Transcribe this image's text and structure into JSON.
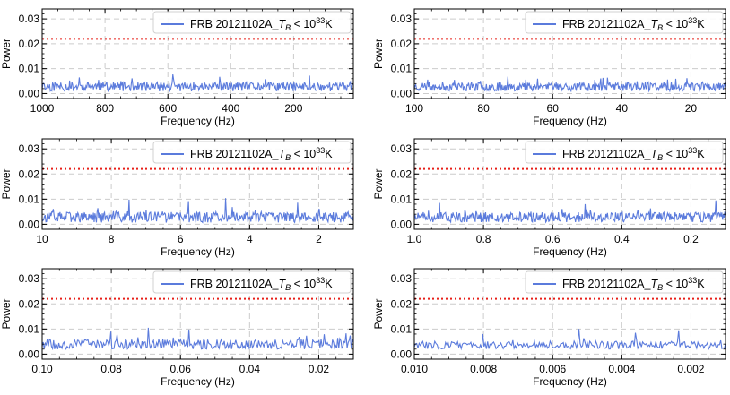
{
  "figure": {
    "layout": "3x2 grid of power spectra"
  },
  "chart_data": [
    {
      "type": "line",
      "title": "",
      "xlabel": "Frequency (Hz)",
      "ylabel": "Power",
      "xlim": [
        1000,
        10
      ],
      "ylim": [
        -0.002,
        0.034
      ],
      "xticks": [
        1000,
        800,
        600,
        400,
        200
      ],
      "xtick_labels": [
        "1000",
        "800",
        "600",
        "400",
        "200"
      ],
      "yticks": [
        0.0,
        0.01,
        0.02,
        0.03
      ],
      "ytick_labels": [
        "0.00",
        "0.01",
        "0.02",
        "0.03"
      ],
      "legend": {
        "label_main": "FRB 20121102A_",
        "label_sym": "T",
        "label_sub": "B",
        "label_op": " < 10",
        "label_sup": "33",
        "label_unit": "K",
        "position": "top-right"
      },
      "threshold": 0.022,
      "noise_mean": 0.0028,
      "noise_spread": 0.0042,
      "n_points": 420,
      "seed": 11,
      "spikes": [
        [
          0.86,
          0.0072
        ],
        [
          0.42,
          0.0077
        ],
        [
          0.12,
          0.0065
        ]
      ],
      "series_color": "#5b7bdc",
      "threshold_color": "#e8201a",
      "grid": true
    },
    {
      "type": "line",
      "title": "",
      "xlabel": "Frequency (Hz)",
      "ylabel": "Power",
      "xlim": [
        100,
        10
      ],
      "ylim": [
        -0.002,
        0.034
      ],
      "xticks": [
        100,
        80,
        60,
        40,
        20
      ],
      "xtick_labels": [
        "100",
        "80",
        "60",
        "40",
        "20"
      ],
      "yticks": [
        0.0,
        0.01,
        0.02,
        0.03
      ],
      "ytick_labels": [
        "0.00",
        "0.01",
        "0.02",
        "0.03"
      ],
      "legend": {
        "label_main": "FRB 20121102A_",
        "label_sym": "T",
        "label_sub": "B",
        "label_op": " < 10",
        "label_sup": "33",
        "label_unit": "K",
        "position": "top-right"
      },
      "threshold": 0.022,
      "noise_mean": 0.0028,
      "noise_spread": 0.004,
      "n_points": 420,
      "seed": 23,
      "spikes": [
        [
          0.3,
          0.0068
        ],
        [
          0.62,
          0.0064
        ]
      ],
      "series_color": "#5b7bdc",
      "threshold_color": "#e8201a",
      "grid": true
    },
    {
      "type": "line",
      "title": "",
      "xlabel": "Frequency (Hz)",
      "ylabel": "Power",
      "xlim": [
        10,
        1
      ],
      "ylim": [
        -0.002,
        0.034
      ],
      "xticks": [
        10,
        8,
        6,
        4,
        2
      ],
      "xtick_labels": [
        "10",
        "8",
        "6",
        "4",
        "2"
      ],
      "yticks": [
        0.0,
        0.01,
        0.02,
        0.03
      ],
      "ytick_labels": [
        "0.00",
        "0.01",
        "0.02",
        "0.03"
      ],
      "legend": {
        "label_main": "FRB 20121102A_",
        "label_sym": "T",
        "label_sub": "B",
        "label_op": " < 10",
        "label_sup": "33",
        "label_unit": "K",
        "position": "top-right"
      },
      "threshold": 0.022,
      "noise_mean": 0.0028,
      "noise_spread": 0.0048,
      "n_points": 420,
      "seed": 37,
      "spikes": [
        [
          0.28,
          0.0098
        ],
        [
          0.47,
          0.0092
        ],
        [
          0.59,
          0.0104
        ],
        [
          0.82,
          0.0086
        ]
      ],
      "series_color": "#5b7bdc",
      "threshold_color": "#e8201a",
      "grid": true
    },
    {
      "type": "line",
      "title": "",
      "xlabel": "Frequency (Hz)",
      "ylabel": "Power",
      "xlim": [
        1.0,
        0.1
      ],
      "ylim": [
        -0.002,
        0.034
      ],
      "xticks": [
        1.0,
        0.8,
        0.6,
        0.4,
        0.2
      ],
      "xtick_labels": [
        "1.0",
        "0.8",
        "0.6",
        "0.4",
        "0.2"
      ],
      "yticks": [
        0.0,
        0.01,
        0.02,
        0.03
      ],
      "ytick_labels": [
        "0.00",
        "0.01",
        "0.02",
        "0.03"
      ],
      "legend": {
        "label_main": "FRB 20121102A_",
        "label_sym": "T",
        "label_sub": "B",
        "label_op": " < 10",
        "label_sup": "33",
        "label_unit": "K",
        "position": "top-right"
      },
      "threshold": 0.022,
      "noise_mean": 0.0028,
      "noise_spread": 0.0044,
      "n_points": 420,
      "seed": 51,
      "spikes": [
        [
          0.08,
          0.0085
        ],
        [
          0.55,
          0.008
        ],
        [
          0.97,
          0.0095
        ]
      ],
      "series_color": "#5b7bdc",
      "threshold_color": "#e8201a",
      "grid": true
    },
    {
      "type": "line",
      "title": "",
      "xlabel": "Frequency (Hz)",
      "ylabel": "Power",
      "xlim": [
        0.1,
        0.01
      ],
      "ylim": [
        -0.002,
        0.034
      ],
      "xticks": [
        0.1,
        0.08,
        0.06,
        0.04,
        0.02
      ],
      "xtick_labels": [
        "0.10",
        "0.08",
        "0.06",
        "0.04",
        "0.02"
      ],
      "yticks": [
        0.0,
        0.01,
        0.02,
        0.03
      ],
      "ytick_labels": [
        "0.00",
        "0.01",
        "0.02",
        "0.03"
      ],
      "legend": {
        "label_main": "FRB 20121102A_",
        "label_sym": "T",
        "label_sub": "B",
        "label_op": " < 10",
        "label_sup": "33",
        "label_unit": "K",
        "position": "top-right"
      },
      "threshold": 0.022,
      "noise_mean": 0.004,
      "noise_spread": 0.0045,
      "n_points": 300,
      "seed": 67,
      "spikes": [
        [
          0.34,
          0.0105
        ],
        [
          0.47,
          0.0098
        ],
        [
          0.22,
          0.009
        ]
      ],
      "series_color": "#5b7bdc",
      "threshold_color": "#e8201a",
      "grid": true
    },
    {
      "type": "line",
      "title": "",
      "xlabel": "Frequency (Hz)",
      "ylabel": "Power",
      "xlim": [
        0.01,
        0.001
      ],
      "ylim": [
        -0.002,
        0.034
      ],
      "xticks": [
        0.01,
        0.008,
        0.006,
        0.004,
        0.002
      ],
      "xtick_labels": [
        "0.010",
        "0.008",
        "0.006",
        "0.004",
        "0.002"
      ],
      "yticks": [
        0.0,
        0.01,
        0.02,
        0.03
      ],
      "ytick_labels": [
        "0.00",
        "0.01",
        "0.02",
        "0.03"
      ],
      "legend": {
        "label_main": "FRB 20121102A_",
        "label_sym": "T",
        "label_sub": "B",
        "label_op": " < 10",
        "label_sup": "33",
        "label_unit": "K",
        "position": "top-right"
      },
      "threshold": 0.022,
      "noise_mean": 0.0036,
      "noise_spread": 0.0035,
      "n_points": 260,
      "seed": 83,
      "spikes": [
        [
          0.22,
          0.008
        ],
        [
          0.53,
          0.01
        ],
        [
          0.71,
          0.0085
        ],
        [
          0.85,
          0.0095
        ]
      ],
      "series_color": "#5b7bdc",
      "threshold_color": "#e8201a",
      "grid": true
    }
  ]
}
